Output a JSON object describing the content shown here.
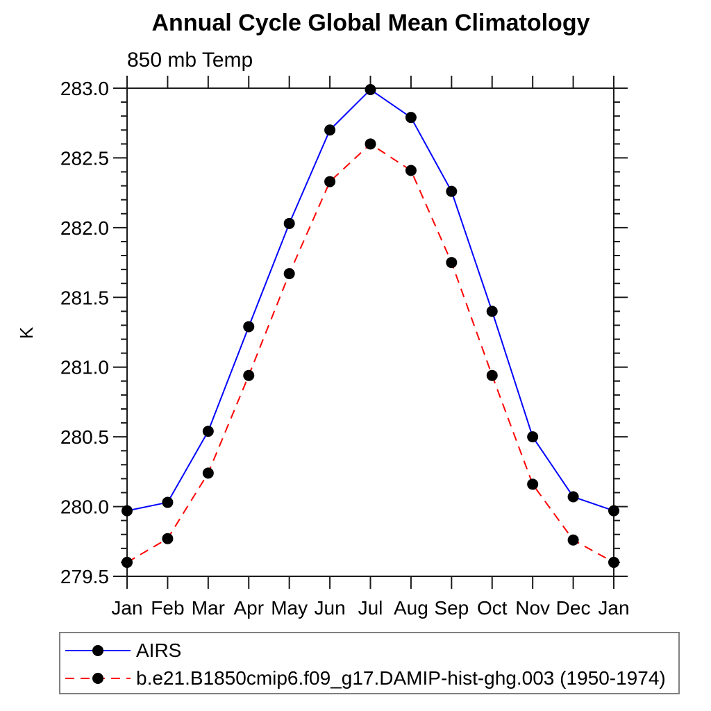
{
  "page": {
    "background": "#ffffff"
  },
  "header": {
    "title": "Annual Cycle Global Mean Climatology",
    "subtitle": "850 mb Temp"
  },
  "axes": {
    "y_title": "K",
    "y_tick_labels": [
      "283.0",
      "282.5",
      "282.0",
      "281.5",
      "281.0",
      "280.5",
      "280.0",
      "279.5"
    ],
    "x_tick_labels": [
      "Jan",
      "Feb",
      "Mar",
      "Apr",
      "May",
      "Jun",
      "Jul",
      "Aug",
      "Sep",
      "Oct",
      "Nov",
      "Dec",
      "Jan"
    ]
  },
  "legend": {
    "items": [
      {
        "label": "AIRS",
        "line_style": "solid",
        "line_color": "#0000ff",
        "marker": "filled-circle",
        "marker_color": "#000000"
      },
      {
        "label": "b.e21.B1850cmip6.f09_g17.DAMIP-hist-ghg.003 (1950-1974)",
        "line_style": "dashed",
        "line_color": "#ff0000",
        "marker": "filled-circle",
        "marker_color": "#000000"
      }
    ]
  },
  "colors": {
    "axis": "#1a1a1a",
    "marker": "#000000",
    "airs_line": "#0000ff",
    "model_line": "#ff0000",
    "legend_border": "#808080"
  },
  "chart_data": {
    "type": "line",
    "title": "Annual Cycle Global Mean Climatology",
    "subtitle": "850 mb Temp",
    "ylabel": "K",
    "xlabel": "",
    "ylim": [
      279.5,
      283.0
    ],
    "y_major_step": 0.5,
    "y_minor_step": 0.1,
    "grid": false,
    "legend_position": "bottom-left-box",
    "categories": [
      "Jan",
      "Feb",
      "Mar",
      "Apr",
      "May",
      "Jun",
      "Jul",
      "Aug",
      "Sep",
      "Oct",
      "Nov",
      "Dec",
      "Jan"
    ],
    "series": [
      {
        "name": "AIRS",
        "color": "#0000ff",
        "style": "solid",
        "marker": "filled-circle",
        "values": [
          279.97,
          280.03,
          280.54,
          281.29,
          282.03,
          282.7,
          282.99,
          282.79,
          282.26,
          281.4,
          280.5,
          280.07,
          279.97
        ]
      },
      {
        "name": "b.e21.B1850cmip6.f09_g17.DAMIP-hist-ghg.003 (1950-1974)",
        "color": "#ff0000",
        "style": "dashed",
        "marker": "filled-circle",
        "values": [
          279.6,
          279.77,
          280.24,
          280.94,
          281.67,
          282.33,
          282.6,
          282.41,
          281.75,
          280.94,
          280.16,
          279.76,
          279.6
        ]
      }
    ]
  }
}
